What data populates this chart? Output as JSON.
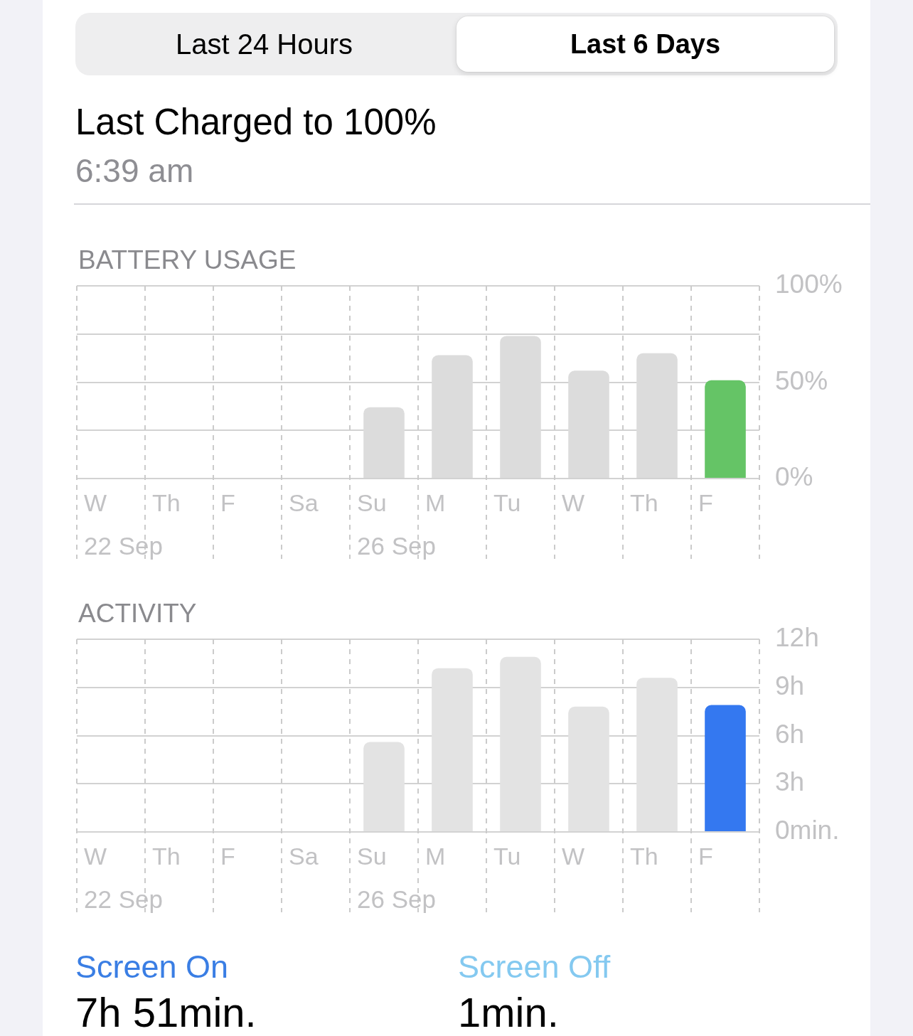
{
  "chart_data": [
    {
      "type": "other",
      "title": "Last Charged to 100%",
      "subtitle": "6:39 am",
      "annotations": [
        "Last 24 Hours",
        "Last 6 Days"
      ]
    },
    {
      "type": "bar",
      "title": "BATTERY USAGE",
      "categories": [
        "W",
        "Th",
        "F",
        "Sa",
        "Su",
        "M",
        "Tu",
        "W",
        "Th",
        "F"
      ],
      "values": [
        null,
        null,
        null,
        null,
        37,
        64,
        74,
        56,
        65,
        51
      ],
      "colors": [
        "#dcdcdc",
        "#dcdcdc",
        "#dcdcdc",
        "#dcdcdc",
        "#dcdcdc",
        "#dcdcdc",
        "#dcdcdc",
        "#dcdcdc",
        "#dcdcdc",
        "#65c466"
      ],
      "ylim": [
        0,
        100
      ],
      "yticks": [
        {
          "value": 0,
          "label": "0%"
        },
        {
          "value": 25,
          "label": null
        },
        {
          "value": 50,
          "label": "50%"
        },
        {
          "value": 75,
          "label": null
        },
        {
          "value": 100,
          "label": "100%"
        }
      ],
      "grid": true,
      "annotations": [
        "22 Sep",
        "26 Sep"
      ]
    },
    {
      "type": "bar",
      "title": "ACTIVITY",
      "categories": [
        "W",
        "Th",
        "F",
        "Sa",
        "Su",
        "M",
        "Tu",
        "W",
        "Th",
        "F"
      ],
      "values": [
        null,
        null,
        null,
        null,
        5.6,
        10.2,
        10.9,
        7.8,
        9.6,
        7.9
      ],
      "colors": [
        "#e3e3e3",
        "#e3e3e3",
        "#e3e3e3",
        "#e3e3e3",
        "#e3e3e3",
        "#e3e3e3",
        "#e3e3e3",
        "#e3e3e3",
        "#e3e3e3",
        "#3478f0"
      ],
      "ylim": [
        0,
        12
      ],
      "yticks": [
        {
          "value": 0,
          "label": "0min."
        },
        {
          "value": 3,
          "label": "3h"
        },
        {
          "value": 6,
          "label": "6h"
        },
        {
          "value": 9,
          "label": "9h"
        },
        {
          "value": 12,
          "label": "12h"
        }
      ],
      "grid": true,
      "annotations": [
        "22 Sep",
        "26 Sep"
      ]
    },
    {
      "type": "other",
      "annotations": [
        "Screen On",
        "7h 51min.",
        "Screen Off",
        "1min."
      ]
    }
  ]
}
